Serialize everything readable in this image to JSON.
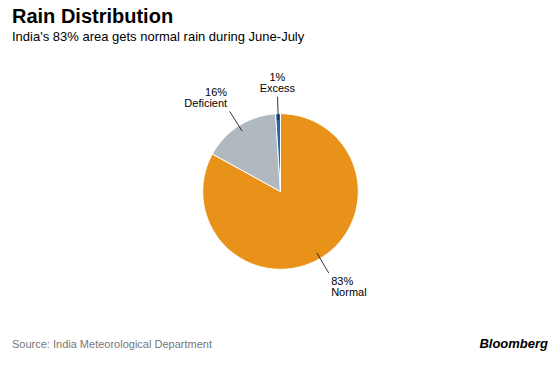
{
  "chart_data": {
    "type": "pie",
    "title": "Rain Distribution",
    "subtitle": "India's 83% area gets normal rain during June-July",
    "categories": [
      "Normal",
      "Deficient",
      "Excess"
    ],
    "values": [
      83,
      16,
      1
    ],
    "value_labels": [
      "83%",
      "16%",
      "1%"
    ],
    "colors": [
      "#E8921A",
      "#B0B8C0",
      "#2464A8"
    ],
    "data_labels": true,
    "annotations": [
      "Source: India Meteorological Department",
      "Bloomberg"
    ]
  }
}
